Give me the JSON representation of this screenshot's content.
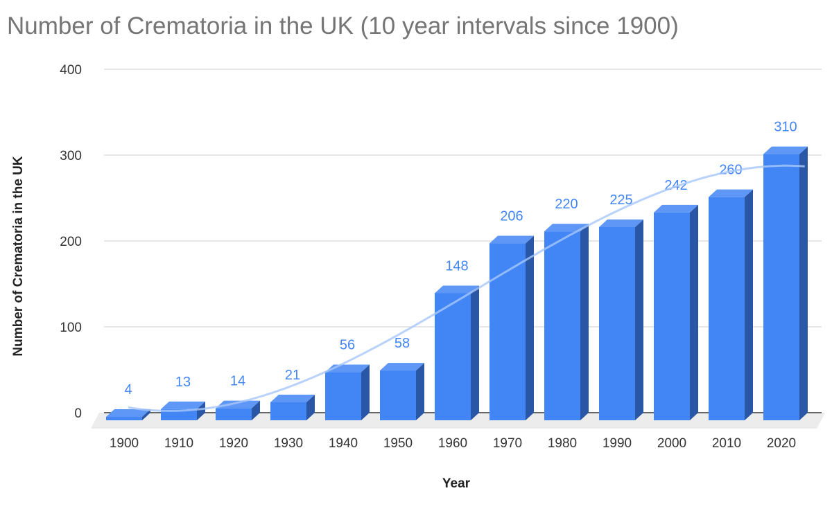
{
  "chart_data": {
    "type": "bar",
    "style": "3d",
    "title": "Number of Crematoria in the UK (10 year intervals since 1900)",
    "xlabel": "Year",
    "ylabel": "Number of Crematoria in the UK",
    "categories": [
      "1900",
      "1910",
      "1920",
      "1930",
      "1940",
      "1950",
      "1960",
      "1970",
      "1980",
      "1990",
      "2000",
      "2010",
      "2020"
    ],
    "values": [
      4,
      13,
      14,
      21,
      56,
      58,
      148,
      206,
      220,
      225,
      242,
      260,
      310
    ],
    "ylim": [
      0,
      400
    ],
    "yticks": [
      0,
      100,
      200,
      300,
      400
    ],
    "grid": true,
    "data_labels": true,
    "trendline": true,
    "colors": {
      "bar_front": "#4285f4",
      "bar_top": "#5e97f6",
      "bar_side": "#2a56a6",
      "label": "#4285f4",
      "trendline": "#a8c7fa",
      "title": "#757575"
    }
  }
}
